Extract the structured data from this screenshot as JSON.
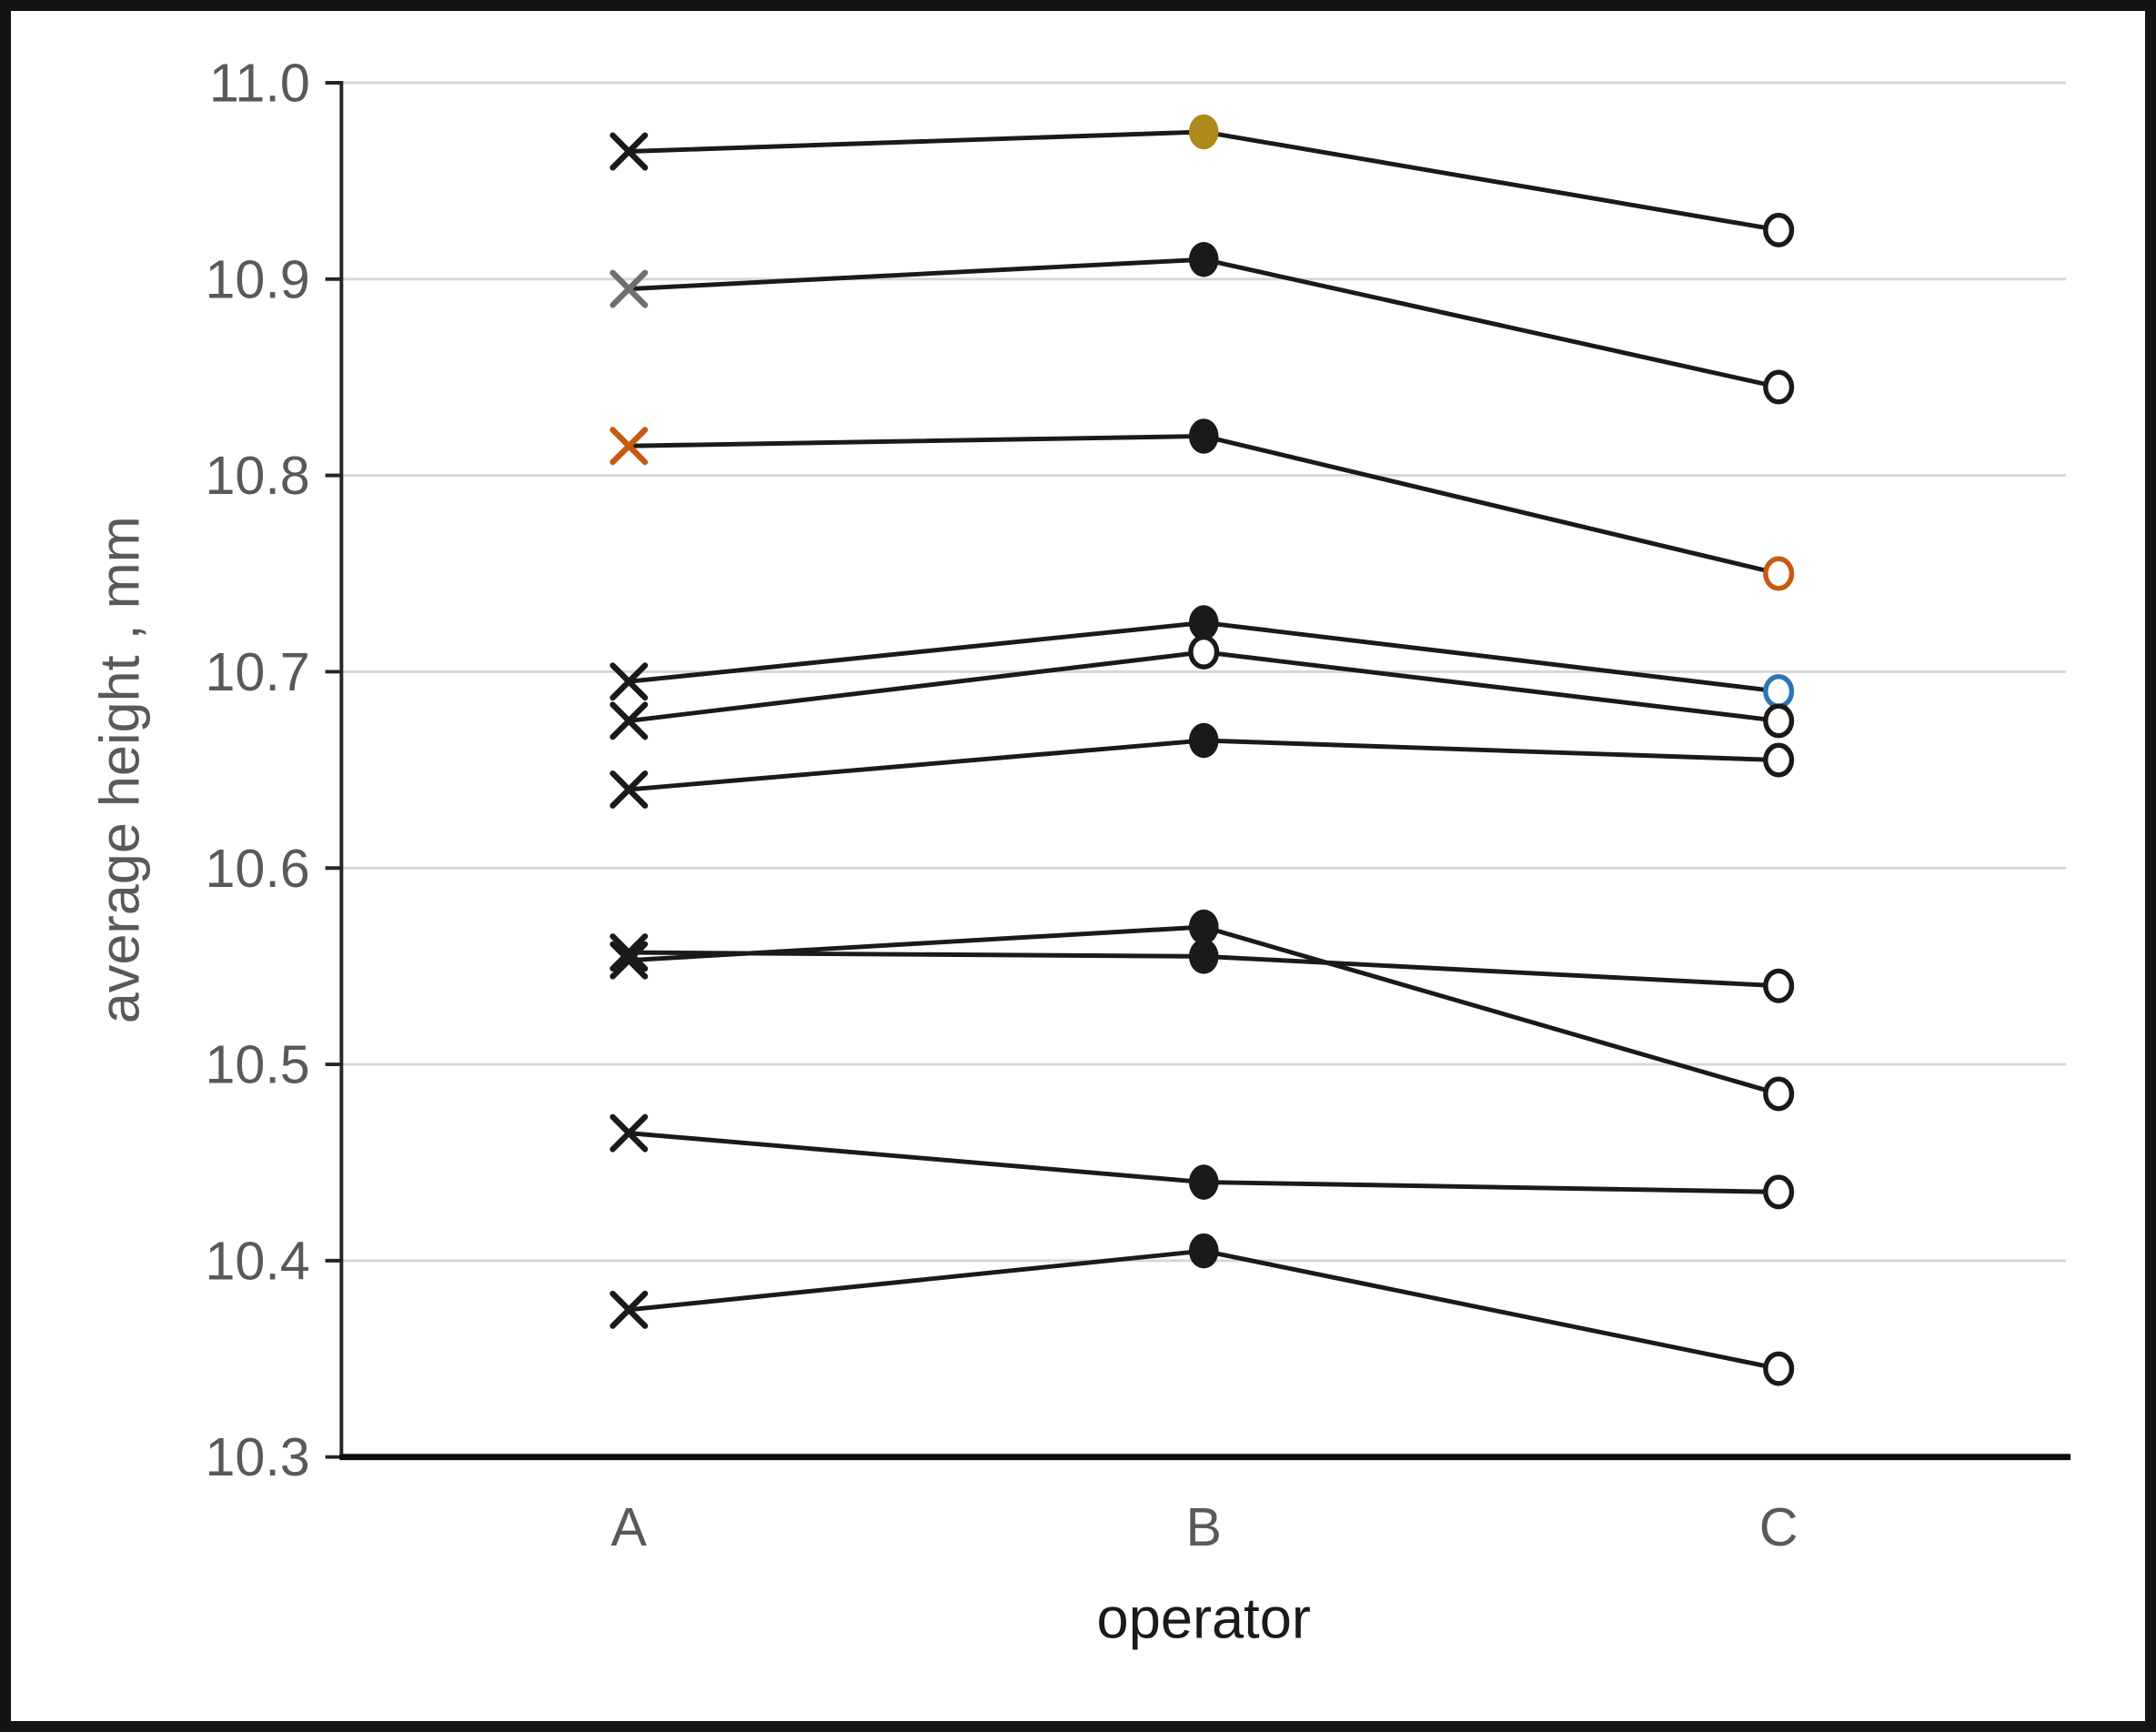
{
  "chart_data": {
    "type": "line",
    "title": "",
    "xlabel": "operator",
    "ylabel": "average height , mm",
    "categories": [
      "A",
      "B",
      "C"
    ],
    "ylim": [
      10.3,
      11.0
    ],
    "yticks": [
      "11.0",
      "10.9",
      "10.8",
      "10.7",
      "10.6",
      "10.5",
      "10.4",
      "10.3"
    ],
    "grid": true,
    "legend": false,
    "marker_legend": {
      "operator_A": "x",
      "operator_B": "filled-dot",
      "operator_C": "open-circle"
    },
    "series": [
      {
        "values": [
          10.965,
          10.975,
          10.925
        ],
        "markers": [
          "x",
          "dot",
          "circle"
        ],
        "marker_colors": [
          "#1A1A1A",
          "#B0891B",
          "#1A1A1A"
        ]
      },
      {
        "values": [
          10.895,
          10.91,
          10.845
        ],
        "markers": [
          "x",
          "dot",
          "circle"
        ],
        "marker_colors": [
          "#6F6F6F",
          "#1A1A1A",
          "#1A1A1A"
        ]
      },
      {
        "values": [
          10.815,
          10.82,
          10.75
        ],
        "markers": [
          "x",
          "dot",
          "circle"
        ],
        "marker_colors": [
          "#C55A11",
          "#1A1A1A",
          "#C55A11"
        ]
      },
      {
        "values": [
          10.695,
          10.725,
          10.69
        ],
        "markers": [
          "x",
          "dot",
          "circle"
        ],
        "marker_colors": [
          "#1A1A1A",
          "#1A1A1A",
          "#2E75B6"
        ]
      },
      {
        "values": [
          10.675,
          10.71,
          10.675
        ],
        "markers": [
          "x",
          "circle",
          "circle"
        ],
        "marker_colors": [
          "#1A1A1A",
          "#1A1A1A",
          "#1A1A1A"
        ]
      },
      {
        "values": [
          10.64,
          10.665,
          10.655
        ],
        "markers": [
          "x",
          "dot",
          "circle"
        ],
        "marker_colors": [
          "#1A1A1A",
          "#1A1A1A",
          "#1A1A1A"
        ]
      },
      {
        "values": [
          10.553,
          10.57,
          10.485
        ],
        "markers": [
          "x",
          "dot",
          "circle"
        ],
        "marker_colors": [
          "#1A1A1A",
          "#1A1A1A",
          "#1A1A1A"
        ]
      },
      {
        "values": [
          10.557,
          10.555,
          10.54
        ],
        "markers": [
          "x",
          "dot",
          "circle"
        ],
        "marker_colors": [
          "#1A1A1A",
          "#1A1A1A",
          "#1A1A1A"
        ]
      },
      {
        "values": [
          10.465,
          10.44,
          10.435
        ],
        "markers": [
          "x",
          "dot",
          "circle"
        ],
        "marker_colors": [
          "#1A1A1A",
          "#1A1A1A",
          "#1A1A1A"
        ]
      },
      {
        "values": [
          10.375,
          10.405,
          10.345
        ],
        "markers": [
          "x",
          "dot",
          "circle"
        ],
        "marker_colors": [
          "#1A1A1A",
          "#1A1A1A",
          "#1A1A1A"
        ]
      }
    ]
  },
  "colors": {
    "gridline": "#D6D6D6",
    "y_axis_line": "#262626",
    "x_axis_line": "#0D0D0D",
    "tick_mark": "#262626",
    "tick_text": "#595959",
    "series_line": "#1A1A1A",
    "accent_gold": "#B0891B",
    "accent_orange": "#C55A11",
    "accent_blue": "#2E75B6",
    "accent_gray": "#6F6F6F",
    "frame": "#141414",
    "background": "#FFFFFF"
  }
}
